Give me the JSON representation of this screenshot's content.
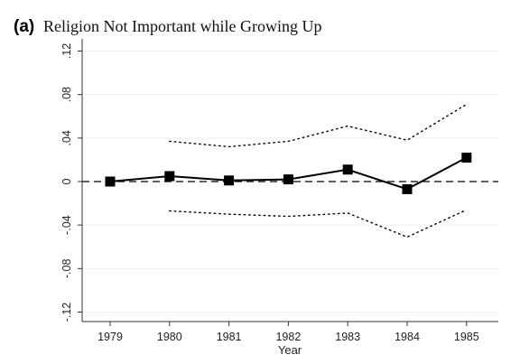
{
  "chart_data": {
    "type": "line",
    "panel_label": "(a)",
    "title": "Religion Not Important while Growing Up",
    "xlabel": "Year",
    "ylabel": "",
    "x": [
      "1979",
      "1980",
      "1981",
      "1982",
      "1983",
      "1984",
      "1985"
    ],
    "ylim": [
      -0.12,
      0.12
    ],
    "y_ticks": [
      ".12",
      ".08",
      ".04",
      "0",
      "-.04",
      "-.08",
      "-.12"
    ],
    "y_tick_values": [
      0.12,
      0.08,
      0.04,
      0,
      -0.04,
      -0.08,
      -0.12
    ],
    "series": [
      {
        "role": "estimate",
        "style": "solid-square-markers",
        "values": [
          0.0,
          0.005,
          0.001,
          0.002,
          0.011,
          -0.007,
          0.022
        ]
      },
      {
        "role": "upper-bound",
        "style": "dotted",
        "values": [
          null,
          0.037,
          0.032,
          0.037,
          0.051,
          0.038,
          0.071
        ]
      },
      {
        "role": "lower-bound",
        "style": "dotted",
        "values": [
          null,
          -0.027,
          -0.03,
          -0.032,
          -0.029,
          -0.051,
          -0.026
        ]
      }
    ],
    "reference_line": {
      "y": 0,
      "style": "dashed"
    },
    "grid": true,
    "legend": "none",
    "colors": {
      "line": "#000000",
      "grid": "#eeeeee",
      "background": "#ffffff"
    }
  }
}
